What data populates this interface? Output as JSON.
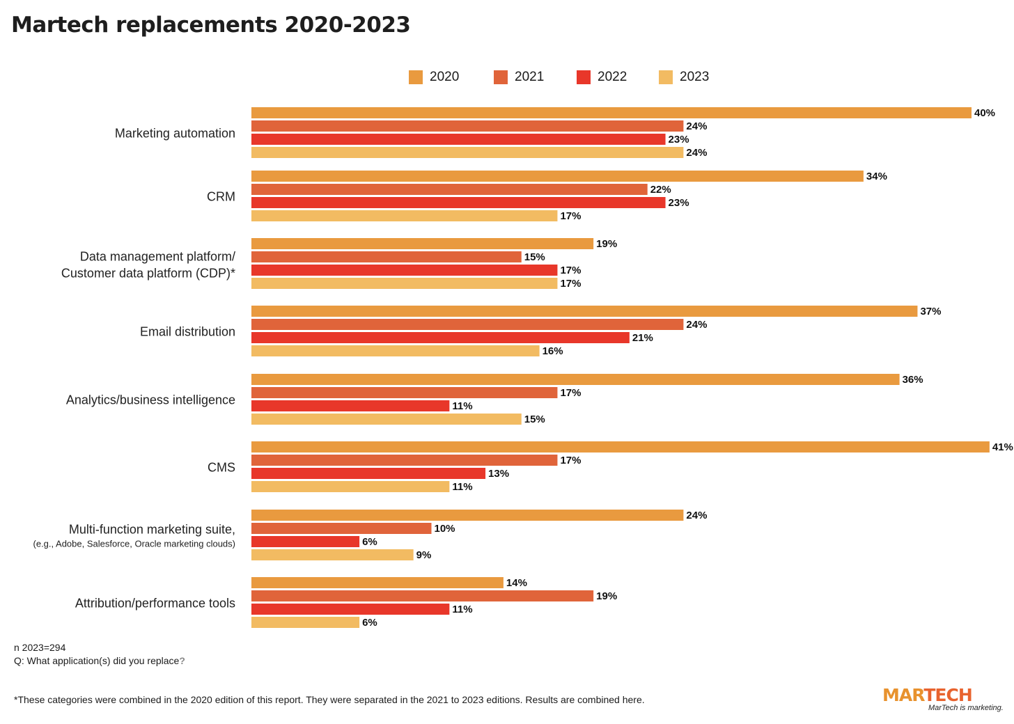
{
  "title": "Martech replacements 2020-2023",
  "colors": {
    "2020": "#e99a3f",
    "2021": "#e0643a",
    "2022": "#e8372a",
    "2023": "#f2bb62"
  },
  "legend": [
    "2020",
    "2021",
    "2022",
    "2023"
  ],
  "chart_data": {
    "type": "bar",
    "orientation": "horizontal",
    "title": "Martech replacements 2020-2023",
    "categories": [
      [
        "Marketing automation"
      ],
      [
        "CRM"
      ],
      [
        "Data management platform/",
        "Customer data platform (CDP)*"
      ],
      [
        "Email distribution"
      ],
      [
        "Analytics/business intelligence"
      ],
      [
        "CMS"
      ],
      [
        "Multi-function marketing suite,",
        "(e.g., Adobe, Salesforce, Oracle marketing clouds)"
      ],
      [
        "Attribution/performance tools"
      ]
    ],
    "series": [
      {
        "name": "2020",
        "values": [
          40,
          34,
          19,
          37,
          36,
          41,
          24,
          14
        ]
      },
      {
        "name": "2021",
        "values": [
          24,
          22,
          15,
          24,
          17,
          17,
          10,
          19
        ]
      },
      {
        "name": "2022",
        "values": [
          23,
          23,
          17,
          21,
          11,
          13,
          6,
          11
        ]
      },
      {
        "name": "2023",
        "values": [
          24,
          17,
          17,
          16,
          15,
          11,
          9,
          6
        ]
      }
    ],
    "value_suffix": "%",
    "legend_position": "top",
    "grid": false
  },
  "notes": {
    "n": "n 2023=294",
    "question_prefix": "Q: What application(s) did you replace",
    "question_mark": "?",
    "footnote": "*These categories were combined in the 2020 edition of this report. They were separated in the 2021 to 2023 editions. Results are combined here."
  },
  "logo": {
    "part1": "MAR",
    "part2": "TECH",
    "tagline": "MarTech is marketing."
  }
}
